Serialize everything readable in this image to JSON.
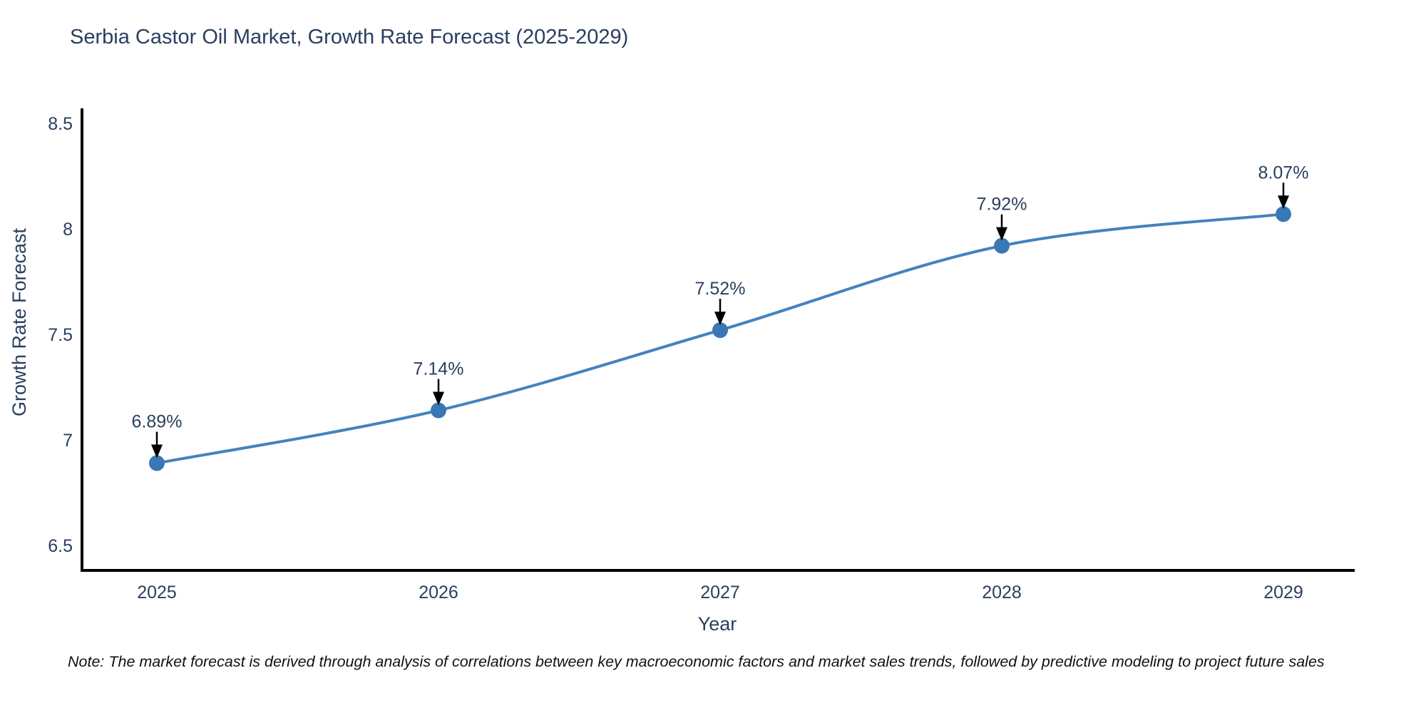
{
  "title": "Serbia Castor Oil Market, Growth Rate Forecast (2025-2029)",
  "note": "Note: The market forecast is derived through analysis of correlations between key macroeconomic factors and market sales trends, followed by predictive modeling to project future sales",
  "colors": {
    "line": "#4383bd",
    "marker": "#3a78b5",
    "axis": "#000000",
    "arrow": "#000000",
    "text": "#2a3f5f",
    "note_text": "#111111",
    "background": "#ffffff"
  },
  "chart_data": {
    "type": "line",
    "title": "Serbia Castor Oil Market, Growth Rate Forecast (2025-2029)",
    "x": [
      2025,
      2026,
      2027,
      2028,
      2029
    ],
    "y": [
      6.89,
      7.14,
      7.52,
      7.92,
      8.07
    ],
    "labels": [
      "6.89%",
      "7.14%",
      "7.52%",
      "7.92%",
      "8.07%"
    ],
    "xlabel": "Year",
    "ylabel": "Growth Rate Forecast",
    "yticks": [
      6.5,
      7,
      7.5,
      8,
      8.5
    ],
    "ylim": [
      6.38,
      8.55
    ],
    "line_shape": "spline",
    "markers": true,
    "annotation_arrows": true,
    "grid": false,
    "legend": false
  }
}
